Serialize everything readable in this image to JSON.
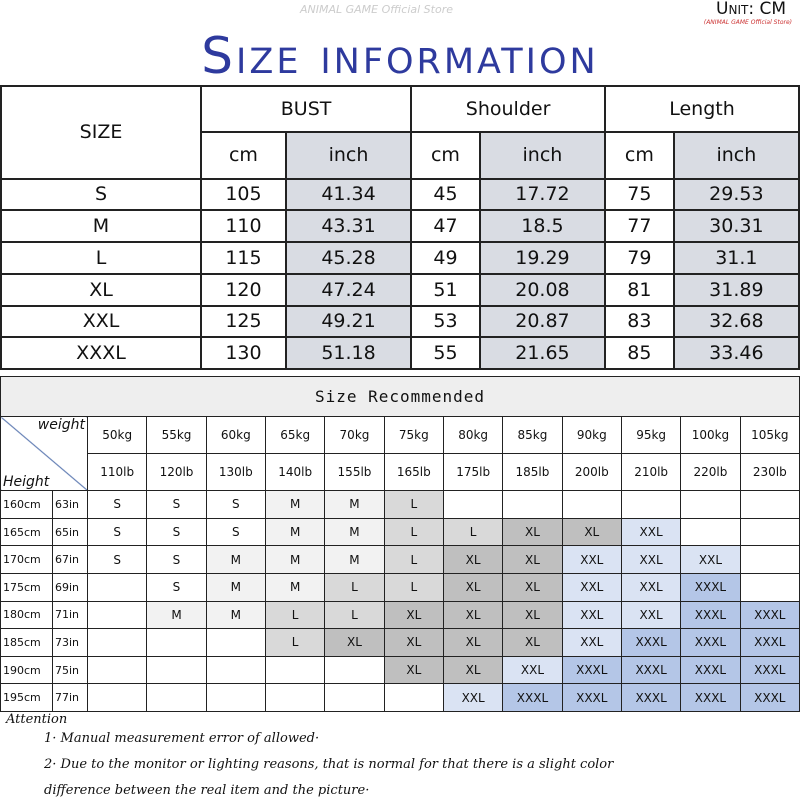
{
  "header": {
    "title": "Size information",
    "unit": "Unit: CM",
    "store": "(ANIMAL GAME Official Store)",
    "watermark": "ANIMAL GAME Official Store"
  },
  "measure_table": {
    "size_label": "SIZE",
    "groups": [
      "BUST",
      "Shoulder",
      "Length"
    ],
    "subheaders": [
      "cm",
      "inch"
    ],
    "rows": [
      [
        "S",
        "105",
        "41.34",
        "45",
        "17.72",
        "75",
        "29.53"
      ],
      [
        "M",
        "110",
        "43.31",
        "47",
        "18.5",
        "77",
        "30.31"
      ],
      [
        "L",
        "115",
        "45.28",
        "49",
        "19.29",
        "79",
        "31.1"
      ],
      [
        "XL",
        "120",
        "47.24",
        "51",
        "20.08",
        "81",
        "31.89"
      ],
      [
        "XXL",
        "125",
        "49.21",
        "53",
        "20.87",
        "83",
        "32.68"
      ],
      [
        "XXXL",
        "130",
        "51.18",
        "55",
        "21.65",
        "85",
        "33.46"
      ]
    ]
  },
  "recommend_table": {
    "title": "Size Recommended",
    "weight_label": "weight",
    "height_label": "Height",
    "weights_kg": [
      "50kg",
      "55kg",
      "60kg",
      "65kg",
      "70kg",
      "75kg",
      "80kg",
      "85kg",
      "90kg",
      "95kg",
      "100kg",
      "105kg"
    ],
    "weights_lb": [
      "110lb",
      "120lb",
      "130lb",
      "140lb",
      "155lb",
      "165lb",
      "175lb",
      "185lb",
      "200lb",
      "210lb",
      "220lb",
      "230lb"
    ],
    "size_colors": {
      "S": "#ffffff",
      "M": "#f2f2f2",
      "L": "#d9d9d9",
      "XL": "#bfbfbf",
      "XXL": "#dae3f3",
      "XXXL": "#b4c6e7"
    },
    "rows": [
      {
        "cm": "160cm",
        "in": "63in",
        "sizes": [
          "S",
          "S",
          "S",
          "M",
          "M",
          "L",
          "",
          "",
          "",
          "",
          "",
          ""
        ]
      },
      {
        "cm": "165cm",
        "in": "65in",
        "sizes": [
          "S",
          "S",
          "S",
          "M",
          "M",
          "L",
          "L",
          "XL",
          "XL",
          "XXL",
          "",
          ""
        ]
      },
      {
        "cm": "170cm",
        "in": "67in",
        "sizes": [
          "S",
          "S",
          "M",
          "M",
          "M",
          "L",
          "XL",
          "XL",
          "XXL",
          "XXL",
          "XXL",
          ""
        ]
      },
      {
        "cm": "175cm",
        "in": "69in",
        "sizes": [
          "",
          "S",
          "M",
          "M",
          "L",
          "L",
          "XL",
          "XL",
          "XXL",
          "XXL",
          "XXXL",
          ""
        ]
      },
      {
        "cm": "180cm",
        "in": "71in",
        "sizes": [
          "",
          "M",
          "M",
          "L",
          "L",
          "XL",
          "XL",
          "XL",
          "XXL",
          "XXL",
          "XXXL",
          "XXXL"
        ]
      },
      {
        "cm": "185cm",
        "in": "73in",
        "sizes": [
          "",
          "",
          "",
          "L",
          "XL",
          "XL",
          "XL",
          "XL",
          "XXL",
          "XXXL",
          "XXXL",
          "XXXL"
        ]
      },
      {
        "cm": "190cm",
        "in": "75in",
        "sizes": [
          "",
          "",
          "",
          "",
          "",
          "XL",
          "XL",
          "XXL",
          "XXXL",
          "XXXL",
          "XXXL",
          "XXXL"
        ]
      },
      {
        "cm": "195cm",
        "in": "77in",
        "sizes": [
          "",
          "",
          "",
          "",
          "",
          "",
          "XXL",
          "XXXL",
          "XXXL",
          "XXXL",
          "XXXL",
          "XXXL"
        ]
      }
    ]
  },
  "attention": {
    "title": "Attention",
    "notes": [
      "1· Manual measurement error of allowed·",
      "2·  Due to the monitor or lighting reasons, that is normal for that there is a slight color",
      "difference between the real item and the picture·"
    ]
  }
}
